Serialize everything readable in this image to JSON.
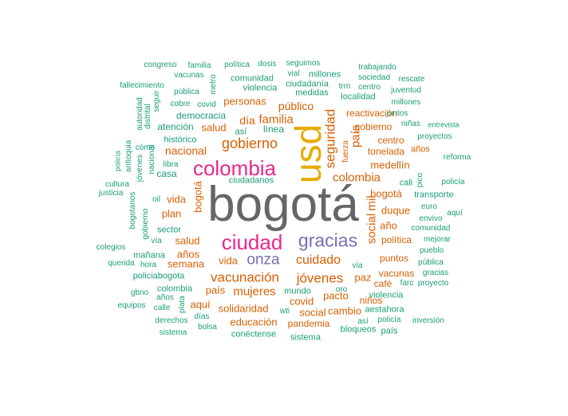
{
  "palette": {
    "gray": "#666666",
    "gold": "#e6ab02",
    "magenta": "#e7298a",
    "purple": "#7570b3",
    "orange": "#d95f02",
    "teal": "#1b9e77"
  },
  "words": [
    {
      "text": "bogotá",
      "color": "gray"
    },
    {
      "text": "usd",
      "color": "gold"
    },
    {
      "text": "colombia",
      "color": "magenta"
    },
    {
      "text": "ciudad",
      "color": "magenta"
    },
    {
      "text": "gracias",
      "color": "purple"
    },
    {
      "text": "onza",
      "color": "purple"
    },
    {
      "text": "gobierno",
      "color": "orange"
    },
    {
      "text": "vacunación",
      "color": "orange"
    },
    {
      "text": "jóvenes",
      "color": "orange"
    },
    {
      "text": "cuidado",
      "color": "orange"
    },
    {
      "text": "mujeres",
      "color": "orange"
    },
    {
      "text": "seguridad",
      "color": "orange"
    },
    {
      "text": "colombia",
      "color": "orange"
    },
    {
      "text": "país",
      "color": "orange"
    },
    {
      "text": "social",
      "color": "orange"
    },
    {
      "text": "mil",
      "color": "orange"
    },
    {
      "text": "familia",
      "color": "orange"
    },
    {
      "text": "personas",
      "color": "orange"
    },
    {
      "text": "público",
      "color": "orange"
    },
    {
      "text": "día",
      "color": "orange"
    },
    {
      "text": "nacional",
      "color": "orange"
    },
    {
      "text": "salud",
      "color": "orange"
    },
    {
      "text": "bogotá",
      "color": "orange"
    },
    {
      "text": "bogotá",
      "color": "orange"
    },
    {
      "text": "duque",
      "color": "orange"
    },
    {
      "text": "año",
      "color": "orange"
    },
    {
      "text": "medellín",
      "color": "orange"
    },
    {
      "text": "centro",
      "color": "orange"
    },
    {
      "text": "tonelada",
      "color": "orange"
    },
    {
      "text": "vida",
      "color": "orange"
    },
    {
      "text": "vida",
      "color": "orange"
    },
    {
      "text": "plan",
      "color": "orange"
    },
    {
      "text": "salud",
      "color": "orange"
    },
    {
      "text": "años",
      "color": "orange"
    },
    {
      "text": "semana",
      "color": "orange"
    },
    {
      "text": "país",
      "color": "orange"
    },
    {
      "text": "covid",
      "color": "orange"
    },
    {
      "text": "pacto",
      "color": "orange"
    },
    {
      "text": "paz",
      "color": "orange"
    },
    {
      "text": "solidaridad",
      "color": "orange"
    },
    {
      "text": "educación",
      "color": "orange"
    },
    {
      "text": "pandemia",
      "color": "orange"
    },
    {
      "text": "social",
      "color": "orange"
    },
    {
      "text": "cambio",
      "color": "orange"
    },
    {
      "text": "aquí",
      "color": "orange"
    },
    {
      "text": "niños",
      "color": "orange"
    },
    {
      "text": "puntos",
      "color": "orange"
    },
    {
      "text": "vacunas",
      "color": "orange"
    },
    {
      "text": "gobierno",
      "color": "orange"
    },
    {
      "text": "reactivación",
      "color": "orange"
    },
    {
      "text": "política",
      "color": "orange"
    },
    {
      "text": "años",
      "color": "orange"
    },
    {
      "text": "fuerza",
      "color": "orange"
    },
    {
      "text": "café",
      "color": "orange"
    },
    {
      "text": "congreso",
      "color": "teal"
    },
    {
      "text": "familia",
      "color": "teal"
    },
    {
      "text": "política",
      "color": "teal"
    },
    {
      "text": "dosis",
      "color": "teal"
    },
    {
      "text": "seguimos",
      "color": "teal"
    },
    {
      "text": "vacunas",
      "color": "teal"
    },
    {
      "text": "metro",
      "color": "teal"
    },
    {
      "text": "vial",
      "color": "teal"
    },
    {
      "text": "millones",
      "color": "teal"
    },
    {
      "text": "trabajando",
      "color": "teal"
    },
    {
      "text": "sociedad",
      "color": "teal"
    },
    {
      "text": "rescate",
      "color": "teal"
    },
    {
      "text": "fallecimiento",
      "color": "teal"
    },
    {
      "text": "comunidad",
      "color": "teal"
    },
    {
      "text": "ciudadanía",
      "color": "teal"
    },
    {
      "text": "trm",
      "color": "teal"
    },
    {
      "text": "centro",
      "color": "teal"
    },
    {
      "text": "juventud",
      "color": "teal"
    },
    {
      "text": "pública",
      "color": "teal"
    },
    {
      "text": "violencia",
      "color": "teal"
    },
    {
      "text": "medidas",
      "color": "teal"
    },
    {
      "text": "localidad",
      "color": "teal"
    },
    {
      "text": "millones",
      "color": "teal"
    },
    {
      "text": "autoridad",
      "color": "teal"
    },
    {
      "text": "seguir",
      "color": "teal"
    },
    {
      "text": "cobre",
      "color": "teal"
    },
    {
      "text": "covid",
      "color": "teal"
    },
    {
      "text": "distrital",
      "color": "teal"
    },
    {
      "text": "democracia",
      "color": "teal"
    },
    {
      "text": "juntos",
      "color": "teal"
    },
    {
      "text": "niñas",
      "color": "teal"
    },
    {
      "text": "entrevista",
      "color": "teal"
    },
    {
      "text": "atención",
      "color": "teal"
    },
    {
      "text": "así",
      "color": "teal"
    },
    {
      "text": "línea",
      "color": "teal"
    },
    {
      "text": "proyectos",
      "color": "teal"
    },
    {
      "text": "histórico",
      "color": "teal"
    },
    {
      "text": "policía",
      "color": "teal"
    },
    {
      "text": "cómo",
      "color": "teal"
    },
    {
      "text": "antioquia",
      "color": "teal"
    },
    {
      "text": "nacional",
      "color": "teal"
    },
    {
      "text": "reforma",
      "color": "teal"
    },
    {
      "text": "libra",
      "color": "teal"
    },
    {
      "text": "jóvenes",
      "color": "teal"
    },
    {
      "text": "pico",
      "color": "teal"
    },
    {
      "text": "cultura",
      "color": "teal"
    },
    {
      "text": "casa",
      "color": "teal"
    },
    {
      "text": "ciudadanos",
      "color": "teal"
    },
    {
      "text": "policía",
      "color": "teal"
    },
    {
      "text": "justicia",
      "color": "teal"
    },
    {
      "text": "cali",
      "color": "teal"
    },
    {
      "text": "transporte",
      "color": "teal"
    },
    {
      "text": "oil",
      "color": "teal"
    },
    {
      "text": "euro",
      "color": "teal"
    },
    {
      "text": "aquí",
      "color": "teal"
    },
    {
      "text": "envivo",
      "color": "teal"
    },
    {
      "text": "bogotanos",
      "color": "teal"
    },
    {
      "text": "gobierno",
      "color": "teal"
    },
    {
      "text": "comunidad",
      "color": "teal"
    },
    {
      "text": "sector",
      "color": "teal"
    },
    {
      "text": "mejorar",
      "color": "teal"
    },
    {
      "text": "colegios",
      "color": "teal"
    },
    {
      "text": "vía",
      "color": "teal"
    },
    {
      "text": "pueblo",
      "color": "teal"
    },
    {
      "text": "mañana",
      "color": "teal"
    },
    {
      "text": "querida",
      "color": "teal"
    },
    {
      "text": "hora",
      "color": "teal"
    },
    {
      "text": "pública",
      "color": "teal"
    },
    {
      "text": "vía",
      "color": "teal"
    },
    {
      "text": "gracias",
      "color": "teal"
    },
    {
      "text": "policiabogota",
      "color": "teal"
    },
    {
      "text": "farc",
      "color": "teal"
    },
    {
      "text": "proyecto",
      "color": "teal"
    },
    {
      "text": "colombia",
      "color": "teal"
    },
    {
      "text": "gbno",
      "color": "teal"
    },
    {
      "text": "años",
      "color": "teal"
    },
    {
      "text": "mundo",
      "color": "teal"
    },
    {
      "text": "oro",
      "color": "teal"
    },
    {
      "text": "violencia",
      "color": "teal"
    },
    {
      "text": "plata",
      "color": "teal"
    },
    {
      "text": "equipos",
      "color": "teal"
    },
    {
      "text": "calle",
      "color": "teal"
    },
    {
      "text": "aestahora",
      "color": "teal"
    },
    {
      "text": "wti",
      "color": "teal"
    },
    {
      "text": "días",
      "color": "teal"
    },
    {
      "text": "derechos",
      "color": "teal"
    },
    {
      "text": "así",
      "color": "teal"
    },
    {
      "text": "policía",
      "color": "teal"
    },
    {
      "text": "inversión",
      "color": "teal"
    },
    {
      "text": "bolsa",
      "color": "teal"
    },
    {
      "text": "bloqueos",
      "color": "teal"
    },
    {
      "text": "sistema",
      "color": "teal"
    },
    {
      "text": "conéctense",
      "color": "teal"
    },
    {
      "text": "sistema",
      "color": "teal"
    },
    {
      "text": "país",
      "color": "teal"
    }
  ]
}
